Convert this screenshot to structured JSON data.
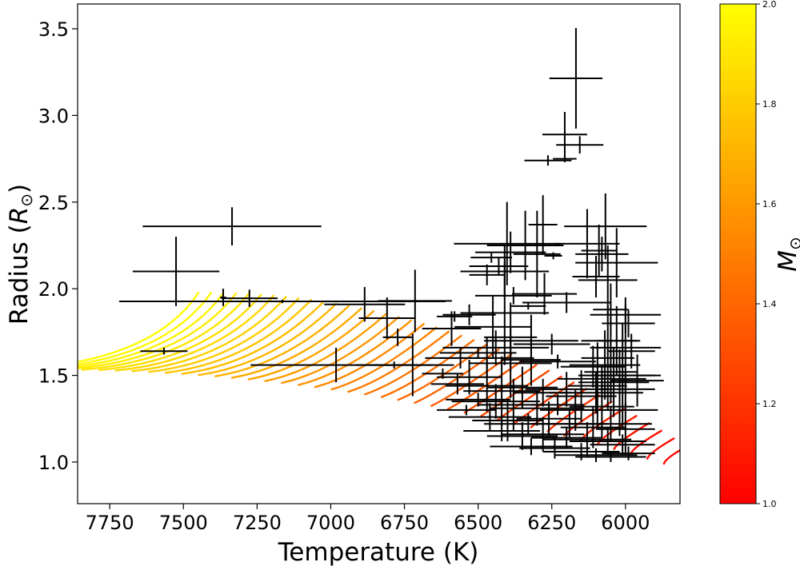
{
  "chart_data": {
    "type": "scatter",
    "title": "",
    "xlabel": "Temperature (K)",
    "ylabel_main": "Radius (",
    "ylabel_symbol": "R",
    "ylabel_sub": "⊙",
    "ylabel_close": ")",
    "xlim": [
      7859,
      5815
    ],
    "ylim": [
      0.76,
      3.643
    ],
    "x_inverted": true,
    "x_ticks": [
      7750,
      7500,
      7250,
      7000,
      6750,
      6500,
      6250,
      6000
    ],
    "y_ticks": [
      "1.0",
      "1.5",
      "2.0",
      "2.5",
      "3.0",
      "3.5"
    ],
    "grid": false,
    "colorbar": {
      "label_symbol": "M",
      "label_sub": "⊙",
      "range": [
        1.0,
        2.0
      ],
      "ticks": [
        "1.0",
        "1.2",
        "1.4",
        "1.6",
        "1.8",
        "2.0"
      ],
      "colormap": "autumn (red to yellow)",
      "low_color": "#ff0000",
      "high_color": "#ffff00"
    },
    "tracks": {
      "description": "evolutionary tracks colored by mass",
      "mass_range": [
        1.0,
        2.0
      ],
      "count": 40
    },
    "points_format": [
      "temperature_K",
      "radius_Rsun",
      "temperature_err",
      "radius_err"
    ],
    "points": [
      [
        6168,
        3.214,
        90,
        0.29
      ],
      [
        6206,
        2.89,
        76,
        0.13
      ],
      [
        6155,
        2.83,
        80,
        0.05
      ],
      [
        6263,
        2.74,
        80,
        0.03
      ],
      [
        6206,
        2.75,
        40,
        0.02
      ],
      [
        7335,
        2.36,
        303,
        0.11
      ],
      [
        7525,
        2.1,
        147,
        0.2
      ],
      [
        7276,
        1.945,
        96,
        0.05
      ],
      [
        7365,
        1.95,
        10,
        0.05
      ],
      [
        7164,
        1.927,
        554,
        0.01
      ],
      [
        7566,
        1.64,
        80,
        0.02
      ],
      [
        6885,
        1.91,
        137,
        0.1
      ],
      [
        6809,
        1.83,
        96,
        0.12
      ],
      [
        6714,
        1.93,
        125,
        0.18
      ],
      [
        6773,
        1.72,
        50,
        0.05
      ],
      [
        6982,
        1.56,
        290,
        0.1
      ],
      [
        6785,
        1.56,
        130,
        0.02
      ],
      [
        6722,
        1.56,
        140,
        0.18
      ],
      [
        6280,
        2.37,
        49,
        0.17
      ],
      [
        6402,
        2.26,
        180,
        0.24
      ],
      [
        6068,
        2.36,
        140,
        0.19
      ],
      [
        6390,
        2.21,
        120,
        0.12
      ],
      [
        6430,
        2.13,
        100,
        0.05
      ],
      [
        6455,
        2.18,
        70,
        0.03
      ],
      [
        6410,
        2.1,
        150,
        0.15
      ],
      [
        6340,
        2.25,
        130,
        0.2
      ],
      [
        6300,
        2.2,
        80,
        0.25
      ],
      [
        6245,
        2.19,
        30,
        0.02
      ],
      [
        6470,
        2.08,
        60,
        0.06
      ],
      [
        6130,
        2.26,
        110,
        0.2
      ],
      [
        6090,
        2.22,
        60,
        0.15
      ],
      [
        6080,
        2.2,
        90,
        0.1
      ],
      [
        6030,
        2.15,
        140,
        0.2
      ],
      [
        6100,
        2.07,
        80,
        0.12
      ],
      [
        6060,
        2.05,
        100,
        0.2
      ],
      [
        6380,
        1.96,
        130,
        0.05
      ],
      [
        6275,
        1.97,
        110,
        0.12
      ],
      [
        6330,
        1.9,
        60,
        0.02
      ],
      [
        6200,
        1.92,
        150,
        0.06
      ],
      [
        6410,
        1.86,
        150,
        0.3
      ],
      [
        6050,
        1.88,
        60,
        0.15
      ],
      [
        6000,
        1.85,
        120,
        0.1
      ],
      [
        5990,
        1.8,
        90,
        0.08
      ],
      [
        6530,
        1.85,
        90,
        0.06
      ],
      [
        6580,
        1.84,
        60,
        0.03
      ],
      [
        6590,
        1.77,
        100,
        0.1
      ],
      [
        6450,
        1.78,
        130,
        0.18
      ],
      [
        6390,
        1.72,
        90,
        0.2
      ],
      [
        6320,
        1.7,
        160,
        0.15
      ],
      [
        6250,
        1.68,
        130,
        0.06
      ],
      [
        6440,
        1.66,
        180,
        0.1
      ],
      [
        6500,
        1.63,
        130,
        0.03
      ],
      [
        6050,
        1.7,
        100,
        0.15
      ],
      [
        6000,
        1.66,
        120,
        0.25
      ],
      [
        5980,
        1.64,
        80,
        0.1
      ],
      [
        6560,
        1.6,
        120,
        0.06
      ],
      [
        6470,
        1.6,
        160,
        0.12
      ],
      [
        6390,
        1.57,
        140,
        0.2
      ],
      [
        6320,
        1.59,
        100,
        0.15
      ],
      [
        6230,
        1.58,
        130,
        0.04
      ],
      [
        6110,
        1.55,
        110,
        0.12
      ],
      [
        6050,
        1.52,
        90,
        0.18
      ],
      [
        6020,
        1.5,
        140,
        0.15
      ],
      [
        6080,
        1.48,
        150,
        0.08
      ],
      [
        6040,
        1.46,
        120,
        0.2
      ],
      [
        5960,
        1.47,
        90,
        0.15
      ],
      [
        6620,
        1.51,
        70,
        0.03
      ],
      [
        6570,
        1.45,
        90,
        0.06
      ],
      [
        6530,
        1.49,
        110,
        0.1
      ],
      [
        6470,
        1.44,
        140,
        0.15
      ],
      [
        6420,
        1.41,
        130,
        0.2
      ],
      [
        6350,
        1.43,
        120,
        0.12
      ],
      [
        6280,
        1.4,
        100,
        0.08
      ],
      [
        6200,
        1.42,
        140,
        0.1
      ],
      [
        6150,
        1.38,
        120,
        0.15
      ],
      [
        6100,
        1.4,
        160,
        0.12
      ],
      [
        6000,
        1.42,
        100,
        0.1
      ],
      [
        6500,
        1.36,
        110,
        0.04
      ],
      [
        6440,
        1.35,
        150,
        0.1
      ],
      [
        6380,
        1.33,
        120,
        0.15
      ],
      [
        6300,
        1.31,
        160,
        0.1
      ],
      [
        6230,
        1.33,
        90,
        0.06
      ],
      [
        6170,
        1.3,
        120,
        0.12
      ],
      [
        6080,
        1.32,
        110,
        0.18
      ],
      [
        6020,
        1.3,
        130,
        0.15
      ],
      [
        6540,
        1.3,
        100,
        0.03
      ],
      [
        6460,
        1.26,
        140,
        0.08
      ],
      [
        6400,
        1.24,
        120,
        0.12
      ],
      [
        6330,
        1.22,
        150,
        0.06
      ],
      [
        6260,
        1.25,
        110,
        0.1
      ],
      [
        6190,
        1.22,
        130,
        0.08
      ],
      [
        6110,
        1.2,
        110,
        0.12
      ],
      [
        6050,
        1.22,
        140,
        0.1
      ],
      [
        6000,
        1.19,
        100,
        0.15
      ],
      [
        6420,
        1.18,
        130,
        0.06
      ],
      [
        6350,
        1.15,
        120,
        0.08
      ],
      [
        6280,
        1.16,
        140,
        0.1
      ],
      [
        6200,
        1.14,
        120,
        0.06
      ],
      [
        6130,
        1.13,
        150,
        0.1
      ],
      [
        6060,
        1.12,
        130,
        0.08
      ],
      [
        6010,
        1.1,
        110,
        0.06
      ],
      [
        6320,
        1.09,
        140,
        0.05
      ],
      [
        6240,
        1.08,
        120,
        0.06
      ],
      [
        6150,
        1.06,
        130,
        0.05
      ],
      [
        6100,
        1.04,
        140,
        0.04
      ],
      [
        6050,
        1.03,
        120,
        0.03
      ],
      [
        5990,
        1.05,
        90,
        0.04
      ],
      [
        6070,
        1.56,
        120,
        0.2
      ],
      [
        6060,
        1.6,
        90,
        0.3
      ],
      [
        6030,
        1.7,
        70,
        0.2
      ],
      [
        6010,
        1.5,
        110,
        0.3
      ],
      [
        6095,
        1.44,
        100,
        0.25
      ]
    ]
  }
}
